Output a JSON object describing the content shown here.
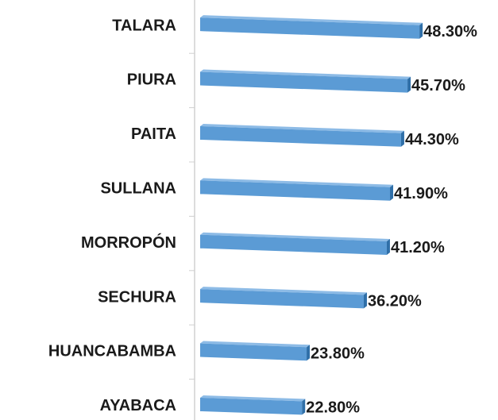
{
  "chart_data": {
    "type": "bar",
    "orientation": "horizontal",
    "categories": [
      "TALARA",
      "PIURA",
      "PAITA",
      "SULLANA",
      "MORROPÓN",
      "SECHURA",
      "HUANCABAMBA",
      "AYABACA"
    ],
    "values": [
      48.3,
      45.7,
      44.3,
      41.9,
      41.2,
      36.2,
      23.8,
      22.8
    ],
    "value_labels": [
      "48.30%",
      "45.70%",
      "44.30%",
      "41.90%",
      "41.20%",
      "36.20%",
      "23.80%",
      "22.80%"
    ],
    "color": "#5b9bd5",
    "xlim": [
      0,
      50
    ]
  }
}
